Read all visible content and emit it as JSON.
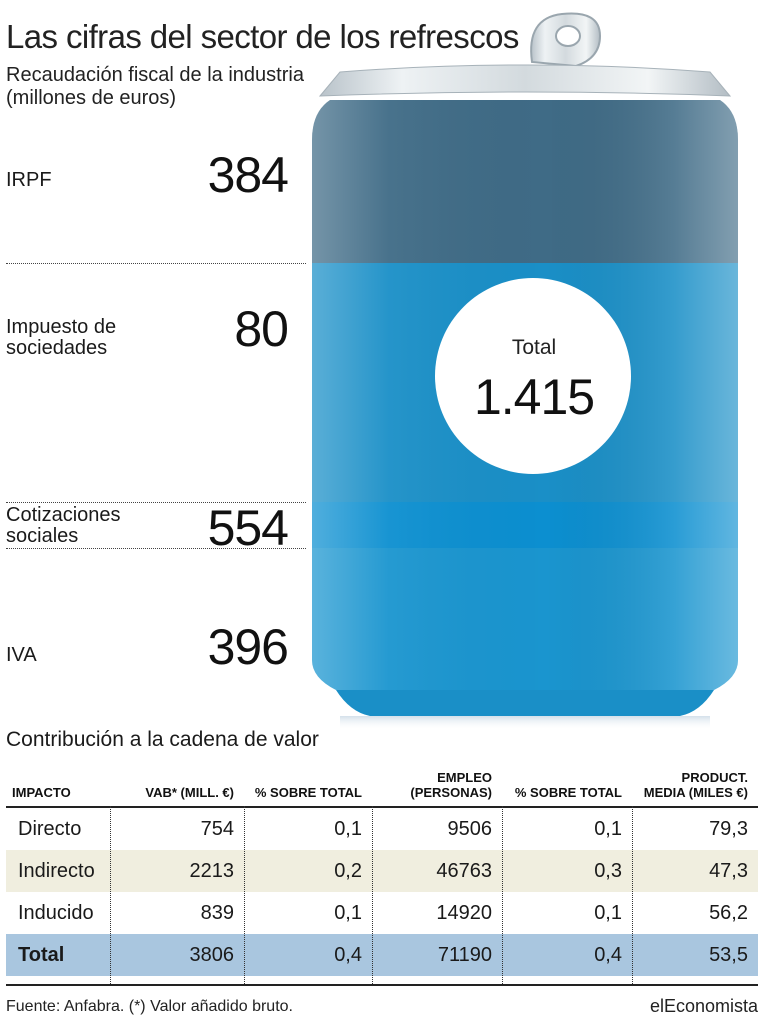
{
  "title": "Las cifras del sector de los refrescos",
  "subtitle": "Recaudación fiscal de la industria (millones de euros)",
  "chart_data": {
    "type": "bar",
    "title": "Las cifras del sector de los refrescos",
    "subtitle": "Recaudación fiscal de la industria (millones de euros)",
    "categories": [
      "IRPF",
      "Impuesto de sociedades",
      "Cotizaciones sociales",
      "IVA"
    ],
    "values": [
      384,
      80,
      554,
      396
    ],
    "value_labels": [
      "384",
      "80",
      "554",
      "396"
    ],
    "total_label": "Total",
    "total_value": "1.415",
    "colors": [
      "#3f6b86",
      "#1a8fc7",
      "#0c8fd0",
      "#1a95cf"
    ]
  },
  "table": {
    "title": "Contribución a la cadena de valor",
    "columns": [
      "IMPACTO",
      "VAB* (MILL. €)",
      "% SOBRE TOTAL",
      "EMPLEO (PERSONAS)",
      "% SOBRE TOTAL",
      "PRODUCT. MEDIA (MILES €)"
    ],
    "rows": [
      [
        "Directo",
        "754",
        "0,1",
        "9506",
        "0,1",
        "79,3"
      ],
      [
        "Indirecto",
        "2213",
        "0,2",
        "46763",
        "0,3",
        "47,3"
      ],
      [
        "Inducido",
        "839",
        "0,1",
        "14920",
        "0,1",
        "56,2"
      ],
      [
        "Total",
        "3806",
        "0,4",
        "71190",
        "0,4",
        "53,5"
      ]
    ],
    "row_colors": [
      "#ffffff",
      "#f0eedf",
      "#ffffff",
      "#a9c6df"
    ]
  },
  "footer": {
    "source": "Fuente: Anfabra. (*) Valor añadido bruto.",
    "brand": "elEconomista"
  }
}
